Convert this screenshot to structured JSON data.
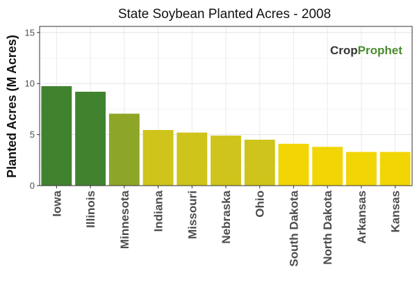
{
  "chart_data": {
    "type": "bar",
    "title": "State Soybean Planted Acres - 2008",
    "xlabel": "",
    "ylabel": "Planted Acres (M Acres)",
    "categories": [
      "Iowa",
      "Illinois",
      "Minnesota",
      "Indiana",
      "Missouri",
      "Nebraska",
      "Ohio",
      "South Dakota",
      "North Dakota",
      "Arkansas",
      "Kansas"
    ],
    "values": [
      9.75,
      9.2,
      7.05,
      5.45,
      5.2,
      4.9,
      4.5,
      4.1,
      3.8,
      3.3,
      3.3
    ],
    "bar_colors": [
      "#41822f",
      "#41822f",
      "#8ea628",
      "#cec41b",
      "#cec41b",
      "#cec41b",
      "#cec41b",
      "#f1d505",
      "#f1d505",
      "#f1d505",
      "#f1d505"
    ],
    "ylim": [
      0,
      15.6
    ],
    "yticks": [
      0,
      5,
      10,
      15
    ],
    "grid": true,
    "legend": "none"
  },
  "watermark": {
    "part1": "Crop",
    "part2": "Prophet",
    "color1": "#333333",
    "color2": "#4a8a2e"
  }
}
